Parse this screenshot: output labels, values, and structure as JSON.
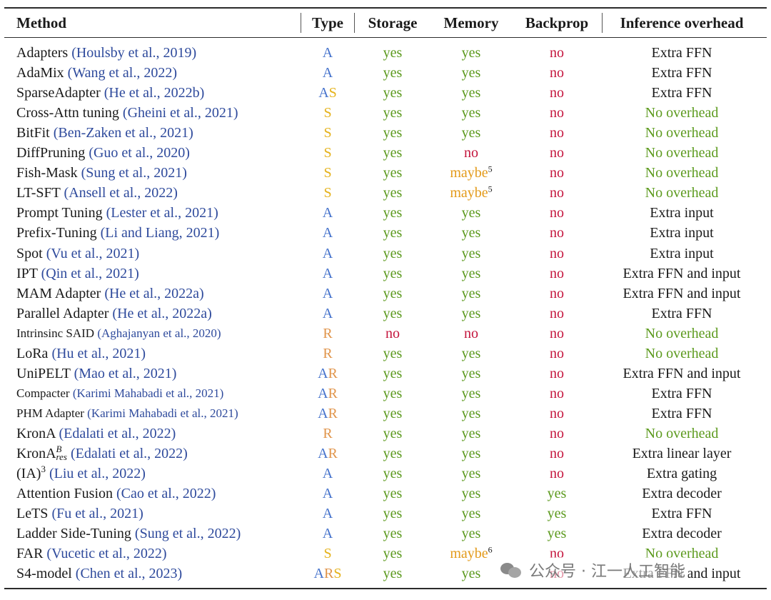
{
  "headers": {
    "method": "Method",
    "type": "Type",
    "storage": "Storage",
    "memory": "Memory",
    "backprop": "Backprop",
    "inference": "Inference overhead"
  },
  "rows": [
    {
      "name": "Adapters",
      "name_sup": "",
      "name_sub": "",
      "cite": "(Houlsby et al., 2019)",
      "small": false,
      "type": [
        "A"
      ],
      "storage": "yes",
      "memory": "yes",
      "memory_sup": "",
      "backprop": "no",
      "inference": "Extra FFN"
    },
    {
      "name": "AdaMix",
      "name_sup": "",
      "name_sub": "",
      "cite": "(Wang et al., 2022)",
      "small": false,
      "type": [
        "A"
      ],
      "storage": "yes",
      "memory": "yes",
      "memory_sup": "",
      "backprop": "no",
      "inference": "Extra FFN"
    },
    {
      "name": "SparseAdapter",
      "name_sup": "",
      "name_sub": "",
      "cite": "(He et al., 2022b)",
      "small": false,
      "type": [
        "A",
        "S"
      ],
      "storage": "yes",
      "memory": "yes",
      "memory_sup": "",
      "backprop": "no",
      "inference": "Extra FFN"
    },
    {
      "name": "Cross-Attn tuning",
      "name_sup": "",
      "name_sub": "",
      "cite": "(Gheini et al., 2021)",
      "small": false,
      "type": [
        "S"
      ],
      "storage": "yes",
      "memory": "yes",
      "memory_sup": "",
      "backprop": "no",
      "inference": "No overhead"
    },
    {
      "name": "BitFit",
      "name_sup": "",
      "name_sub": "",
      "cite": "(Ben-Zaken et al., 2021)",
      "small": false,
      "type": [
        "S"
      ],
      "storage": "yes",
      "memory": "yes",
      "memory_sup": "",
      "backprop": "no",
      "inference": "No overhead"
    },
    {
      "name": "DiffPruning",
      "name_sup": "",
      "name_sub": "",
      "cite": "(Guo et al., 2020)",
      "small": false,
      "type": [
        "S"
      ],
      "storage": "yes",
      "memory": "no",
      "memory_sup": "",
      "backprop": "no",
      "inference": "No overhead"
    },
    {
      "name": "Fish-Mask",
      "name_sup": "",
      "name_sub": "",
      "cite": "(Sung et al., 2021)",
      "small": false,
      "type": [
        "S"
      ],
      "storage": "yes",
      "memory": "maybe",
      "memory_sup": "5",
      "backprop": "no",
      "inference": "No overhead"
    },
    {
      "name": "LT-SFT",
      "name_sup": "",
      "name_sub": "",
      "cite": "(Ansell et al., 2022)",
      "small": false,
      "type": [
        "S"
      ],
      "storage": "yes",
      "memory": "maybe",
      "memory_sup": "5",
      "backprop": "no",
      "inference": "No overhead"
    },
    {
      "name": "Prompt Tuning",
      "name_sup": "",
      "name_sub": "",
      "cite": "(Lester et al., 2021)",
      "small": false,
      "type": [
        "A"
      ],
      "storage": "yes",
      "memory": "yes",
      "memory_sup": "",
      "backprop": "no",
      "inference": "Extra input"
    },
    {
      "name": "Prefix-Tuning",
      "name_sup": "",
      "name_sub": "",
      "cite": "(Li and Liang, 2021)",
      "small": false,
      "type": [
        "A"
      ],
      "storage": "yes",
      "memory": "yes",
      "memory_sup": "",
      "backprop": "no",
      "inference": "Extra input"
    },
    {
      "name": "Spot",
      "name_sup": "",
      "name_sub": "",
      "cite": "(Vu et al., 2021)",
      "small": false,
      "type": [
        "A"
      ],
      "storage": "yes",
      "memory": "yes",
      "memory_sup": "",
      "backprop": "no",
      "inference": "Extra input"
    },
    {
      "name": "IPT",
      "name_sup": "",
      "name_sub": "",
      "cite": "(Qin et al., 2021)",
      "small": false,
      "type": [
        "A"
      ],
      "storage": "yes",
      "memory": "yes",
      "memory_sup": "",
      "backprop": "no",
      "inference": "Extra FFN and input"
    },
    {
      "name": "MAM Adapter",
      "name_sup": "",
      "name_sub": "",
      "cite": "(He et al., 2022a)",
      "small": false,
      "type": [
        "A"
      ],
      "storage": "yes",
      "memory": "yes",
      "memory_sup": "",
      "backprop": "no",
      "inference": "Extra FFN and input"
    },
    {
      "name": "Parallel Adapter",
      "name_sup": "",
      "name_sub": "",
      "cite": "(He et al., 2022a)",
      "small": false,
      "type": [
        "A"
      ],
      "storage": "yes",
      "memory": "yes",
      "memory_sup": "",
      "backprop": "no",
      "inference": "Extra FFN"
    },
    {
      "name": "Intrinsinc SAID",
      "name_sup": "",
      "name_sub": "",
      "cite": "(Aghajanyan et al., 2020)",
      "small": true,
      "type": [
        "R"
      ],
      "storage": "no",
      "memory": "no",
      "memory_sup": "",
      "backprop": "no",
      "inference": "No overhead"
    },
    {
      "name": "LoRa",
      "name_sup": "",
      "name_sub": "",
      "cite": "(Hu et al., 2021)",
      "small": false,
      "type": [
        "R"
      ],
      "storage": "yes",
      "memory": "yes",
      "memory_sup": "",
      "backprop": "no",
      "inference": "No overhead"
    },
    {
      "name": "UniPELT",
      "name_sup": "",
      "name_sub": "",
      "cite": "(Mao et al., 2021)",
      "small": false,
      "type": [
        "A",
        "R"
      ],
      "storage": "yes",
      "memory": "yes",
      "memory_sup": "",
      "backprop": "no",
      "inference": "Extra FFN and input"
    },
    {
      "name": "Compacter",
      "name_sup": "",
      "name_sub": "",
      "cite": "(Karimi Mahabadi et al., 2021)",
      "small": true,
      "type": [
        "A",
        "R"
      ],
      "storage": "yes",
      "memory": "yes",
      "memory_sup": "",
      "backprop": "no",
      "inference": "Extra FFN"
    },
    {
      "name": "PHM Adapter",
      "name_sup": "",
      "name_sub": "",
      "cite": "(Karimi Mahabadi et al., 2021)",
      "small": true,
      "type": [
        "A",
        "R"
      ],
      "storage": "yes",
      "memory": "yes",
      "memory_sup": "",
      "backprop": "no",
      "inference": "Extra FFN"
    },
    {
      "name": "KronA",
      "name_sup": "",
      "name_sub": "",
      "cite": "(Edalati et al., 2022)",
      "small": false,
      "type": [
        "R"
      ],
      "storage": "yes",
      "memory": "yes",
      "memory_sup": "",
      "backprop": "no",
      "inference": "No overhead"
    },
    {
      "name": "KronA",
      "name_sup": "B",
      "name_sub": "res",
      "cite": "(Edalati et al., 2022)",
      "small": false,
      "type": [
        "A",
        "R"
      ],
      "storage": "yes",
      "memory": "yes",
      "memory_sup": "",
      "backprop": "no",
      "inference": "Extra linear layer"
    },
    {
      "name": "(IA)",
      "name_sup": "3",
      "name_sub": "",
      "cite": "(Liu et al., 2022)",
      "small": false,
      "type": [
        "A"
      ],
      "storage": "yes",
      "memory": "yes",
      "memory_sup": "",
      "backprop": "no",
      "inference": "Extra gating"
    },
    {
      "name": "Attention Fusion",
      "name_sup": "",
      "name_sub": "",
      "cite": "(Cao et al., 2022)",
      "small": false,
      "type": [
        "A"
      ],
      "storage": "yes",
      "memory": "yes",
      "memory_sup": "",
      "backprop": "yes",
      "inference": "Extra decoder"
    },
    {
      "name": "LeTS",
      "name_sup": "",
      "name_sub": "",
      "cite": "(Fu et al., 2021)",
      "small": false,
      "type": [
        "A"
      ],
      "storage": "yes",
      "memory": "yes",
      "memory_sup": "",
      "backprop": "yes",
      "inference": "Extra FFN"
    },
    {
      "name": "Ladder Side-Tuning",
      "name_sup": "",
      "name_sub": "",
      "cite": "(Sung et al., 2022)",
      "small": false,
      "type": [
        "A"
      ],
      "storage": "yes",
      "memory": "yes",
      "memory_sup": "",
      "backprop": "yes",
      "inference": "Extra decoder"
    },
    {
      "name": "FAR",
      "name_sup": "",
      "name_sub": "",
      "cite": "(Vucetic et al., 2022)",
      "small": false,
      "type": [
        "S"
      ],
      "storage": "yes",
      "memory": "maybe",
      "memory_sup": "6",
      "backprop": "no",
      "inference": "No overhead"
    },
    {
      "name": "S4-model",
      "name_sup": "",
      "name_sub": "",
      "cite": "(Chen et al., 2023)",
      "small": false,
      "type": [
        "A",
        "R",
        "S"
      ],
      "storage": "yes",
      "memory": "yes",
      "memory_sup": "",
      "backprop": "no",
      "inference": "Extra FFN and input"
    }
  ],
  "colors": {
    "yes": "#5c9a1e",
    "no": "#c4143c",
    "maybe": "#e39a1a",
    "citation": "#2e4a9c",
    "no_overhead": "#5c9a1e",
    "type_A": "#4673cc",
    "type_S": "#e5b21b",
    "type_R": "#e0944a"
  },
  "watermark": {
    "icon": "wechat-icon",
    "text": "公众号 · 江一人工智能"
  }
}
